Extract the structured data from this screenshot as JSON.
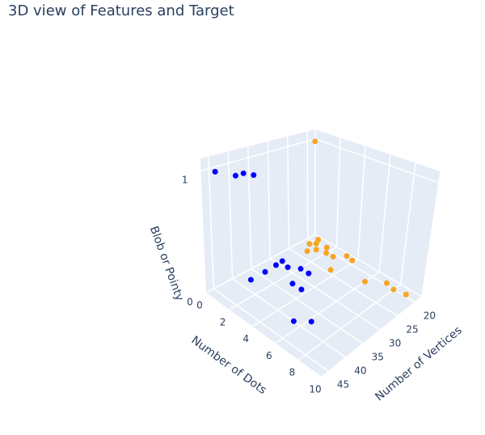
{
  "chart_data": {
    "type": "scatter3d",
    "title": "3D view of Features and Target",
    "xlabel": "Number of Dots",
    "ylabel": "Number of Vertices",
    "zlabel": "Blob or Pointy",
    "xlim": [
      0,
      10
    ],
    "ylim": [
      18,
      47
    ],
    "zlim": [
      0,
      1.1
    ],
    "xticks": [
      0,
      2,
      4,
      6,
      8,
      10
    ],
    "yticks": [
      20,
      25,
      30,
      35,
      40,
      45
    ],
    "zticks": [
      0,
      1
    ],
    "grid": true,
    "series": [
      {
        "color": "#0000ff",
        "x": [
          0.8,
          0.8,
          0.7,
          0.74,
          1.4,
          2.8,
          3.6,
          2.07,
          2.76,
          5.4,
          6.2,
          0.5,
          1.5,
          2,
          1.5
        ],
        "y": [
          37.5,
          33.7,
          28.8,
          30.6,
          29.4,
          32.3,
          32.3,
          27.9,
          27.8,
          40,
          37.6,
          45,
          41,
          40,
          43
        ],
        "z": [
          0,
          0,
          0,
          0,
          0,
          0,
          0,
          0,
          0,
          0,
          0,
          1,
          1,
          1,
          1
        ]
      },
      {
        "color": "#f5a623",
        "x": [
          0.52,
          0.56,
          1.28,
          2.0,
          2.6,
          3.2,
          3.8,
          1.0,
          3.5,
          6.0,
          7.2,
          8.0,
          9.0,
          0.3,
          0.8,
          1.6
        ],
        "y": [
          21,
          18.8,
          21.4,
          20.8,
          20.7,
          18.7,
          19,
          23,
          24,
          22,
          19.5,
          20,
          19.5,
          19,
          20,
          19.5
        ],
        "z": [
          0,
          0,
          0,
          0,
          0,
          0,
          0,
          0,
          0,
          0,
          0,
          0,
          0,
          1,
          0,
          0
        ]
      }
    ]
  }
}
